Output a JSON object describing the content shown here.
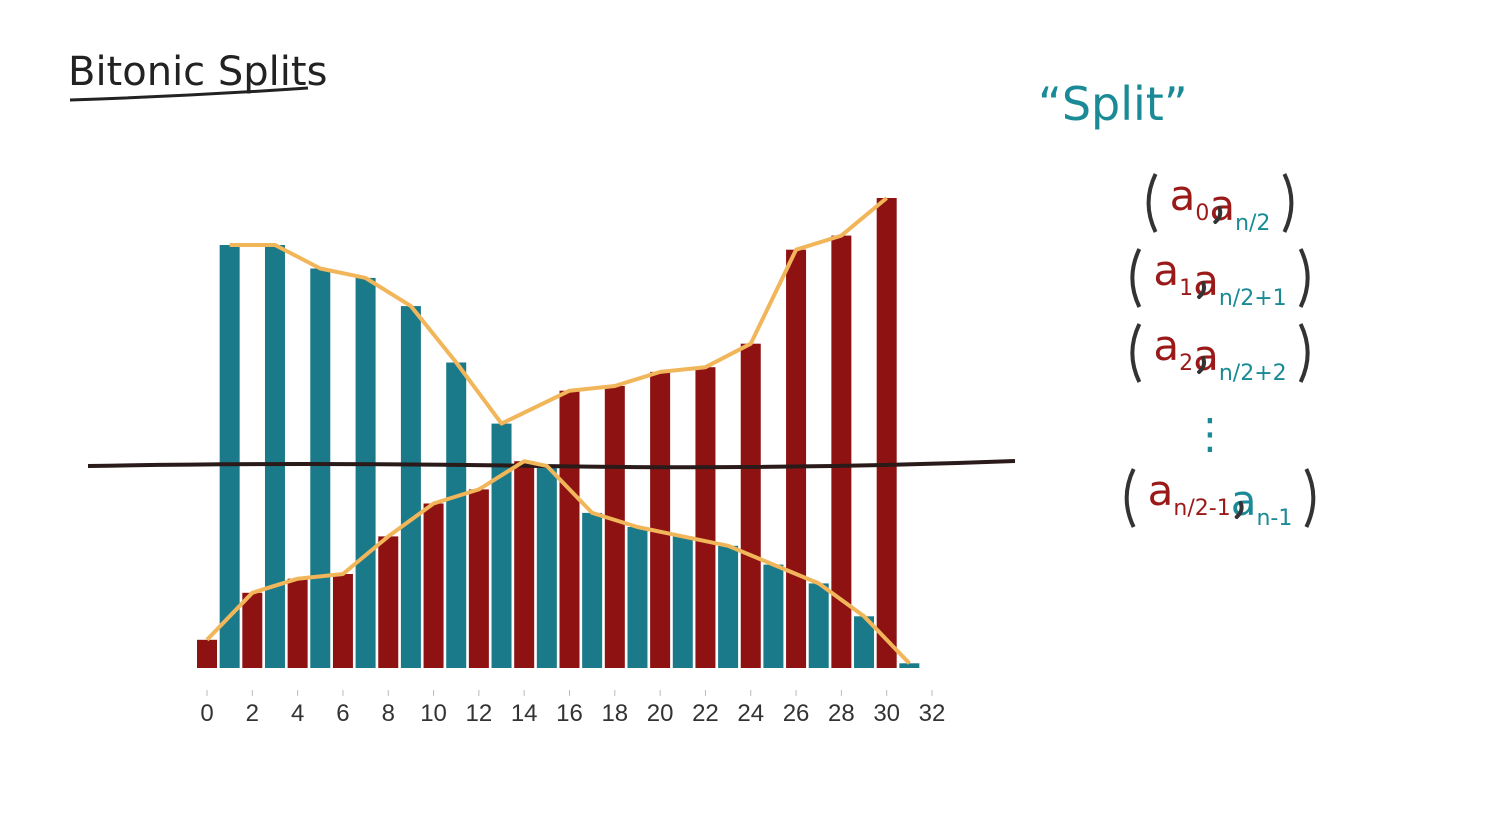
{
  "chart_data": {
    "type": "bar",
    "title": "Bitonic Splits",
    "x": [
      0,
      1,
      2,
      3,
      4,
      5,
      6,
      7,
      8,
      9,
      10,
      11,
      12,
      13,
      14,
      15,
      16,
      17,
      18,
      19,
      20,
      21,
      22,
      23,
      24,
      25,
      26,
      27,
      28,
      29,
      30,
      31
    ],
    "values": [
      6,
      90,
      16,
      90,
      19,
      85,
      20,
      83,
      28,
      77,
      35,
      65,
      38,
      52,
      44,
      43,
      59,
      33,
      60,
      30,
      63,
      28,
      64,
      26,
      69,
      22,
      89,
      18,
      92,
      11,
      100,
      1
    ],
    "colors": [
      "#8e1212",
      "#1b7a8a"
    ],
    "xlim": [
      0,
      32
    ],
    "xticks": [
      0,
      2,
      4,
      6,
      8,
      10,
      12,
      14,
      16,
      18,
      20,
      22,
      24,
      26,
      28,
      30,
      32
    ],
    "ylim": [
      0,
      100
    ],
    "line_color": "#f2b65a"
  },
  "split_notes": {
    "title": "“Split”",
    "pairs": [
      {
        "left": "a",
        "left_sub": "0",
        "right": "a",
        "right_sub": "n/2"
      },
      {
        "left": "a",
        "left_sub": "1",
        "right": "a",
        "right_sub": "n/2+1"
      },
      {
        "left": "a",
        "left_sub": "2",
        "right": "a",
        "right_sub": "n/2+2"
      },
      {
        "left": "a",
        "left_sub": "n/2-1",
        "right": "a",
        "right_sub": "n-1"
      }
    ],
    "ellipsis": "⋮"
  }
}
